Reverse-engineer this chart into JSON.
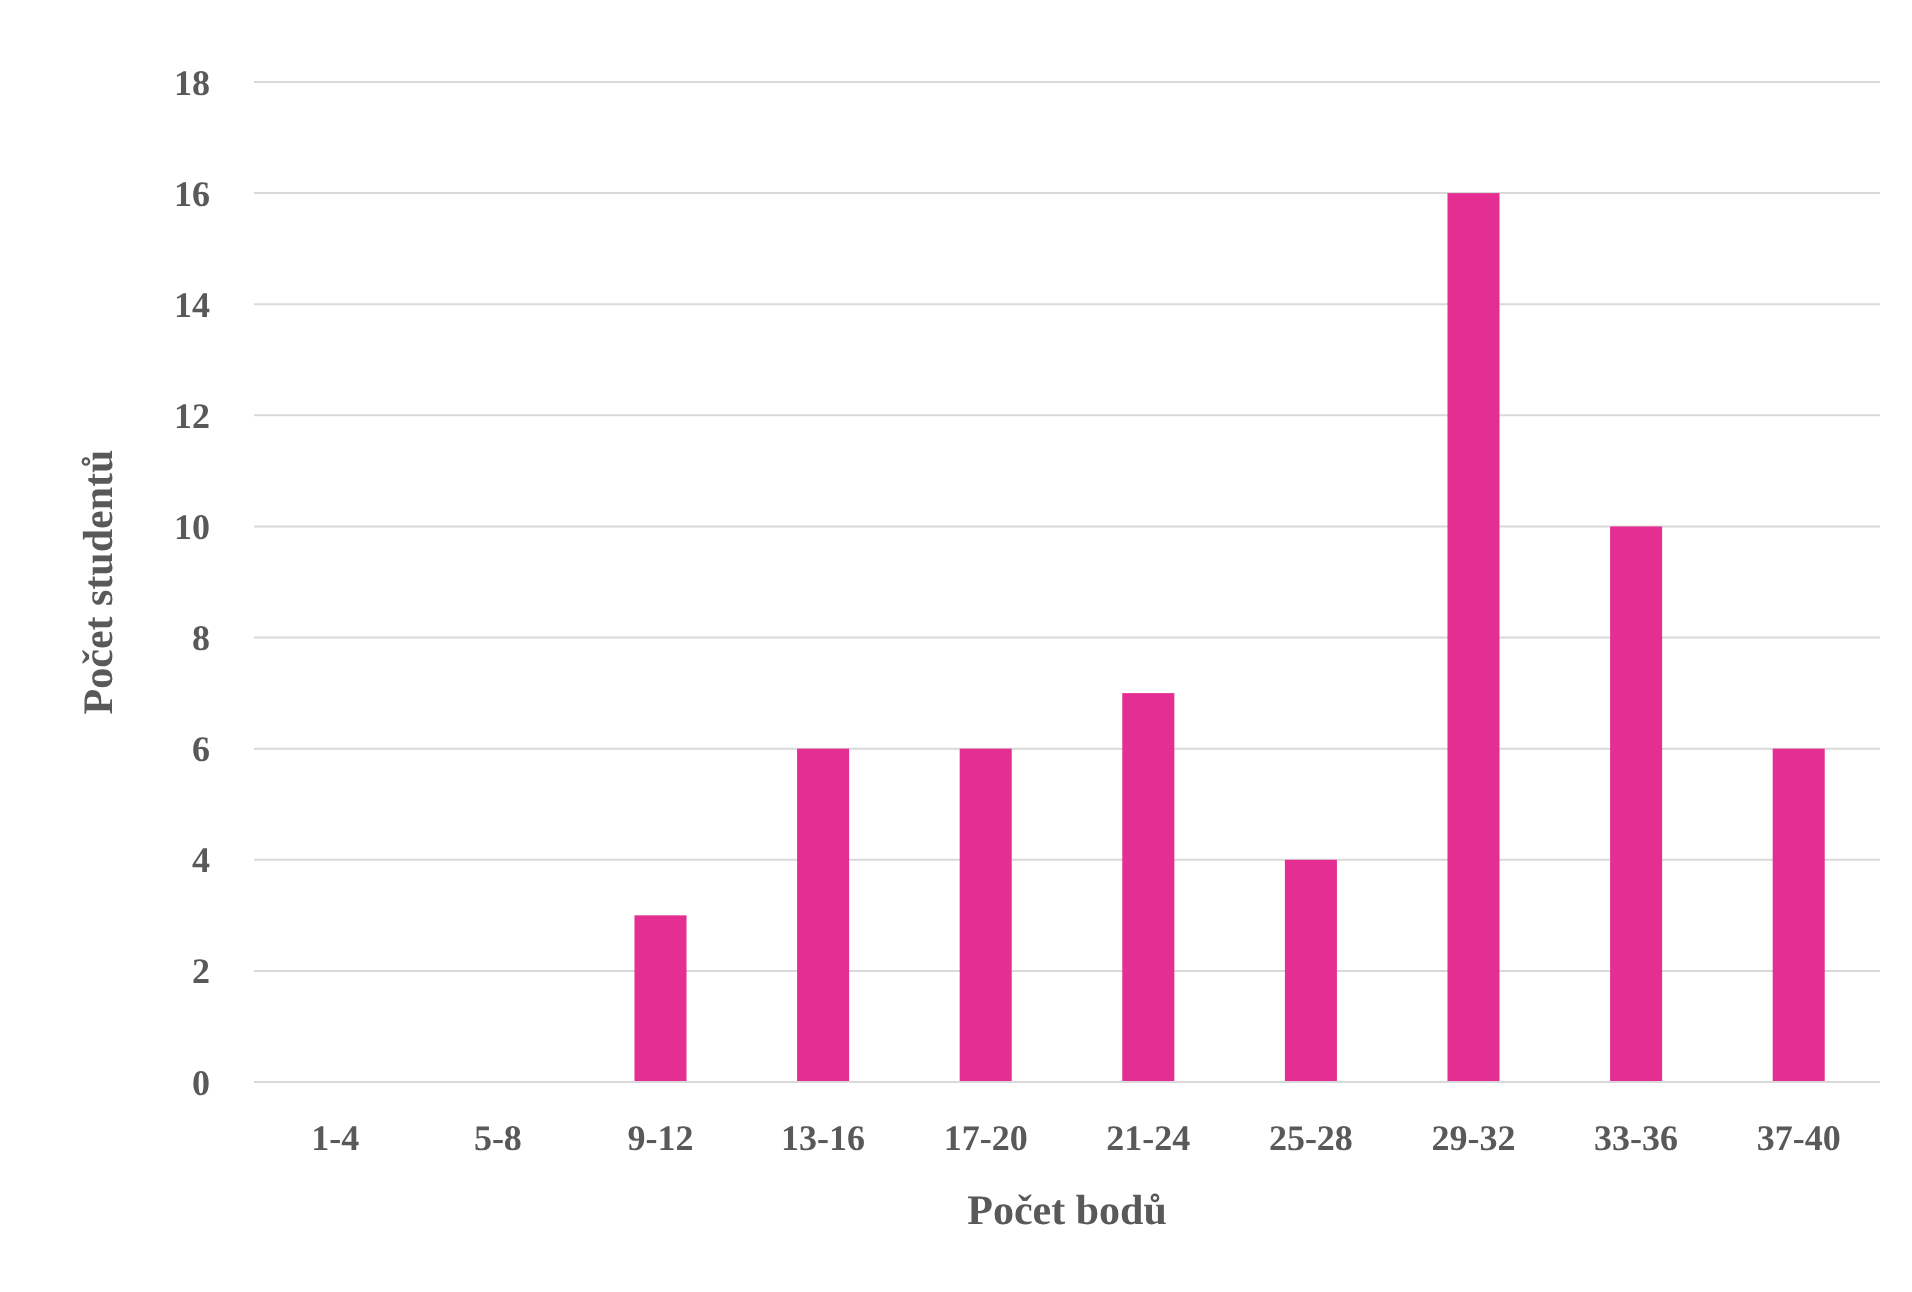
{
  "chart_data": {
    "type": "bar",
    "xlabel": "Počet bodů",
    "ylabel": "Počet studentů",
    "categories": [
      "1-4",
      "5-8",
      "9-12",
      "13-16",
      "17-20",
      "21-24",
      "25-28",
      "29-32",
      "33-36",
      "37-40"
    ],
    "values": [
      0,
      0,
      3,
      6,
      6,
      7,
      4,
      16,
      10,
      6
    ],
    "color": "#e52e91",
    "ylim": [
      0,
      18
    ],
    "yticks": [
      0,
      2,
      4,
      6,
      8,
      10,
      12,
      14,
      16,
      18
    ],
    "grid": "y"
  }
}
